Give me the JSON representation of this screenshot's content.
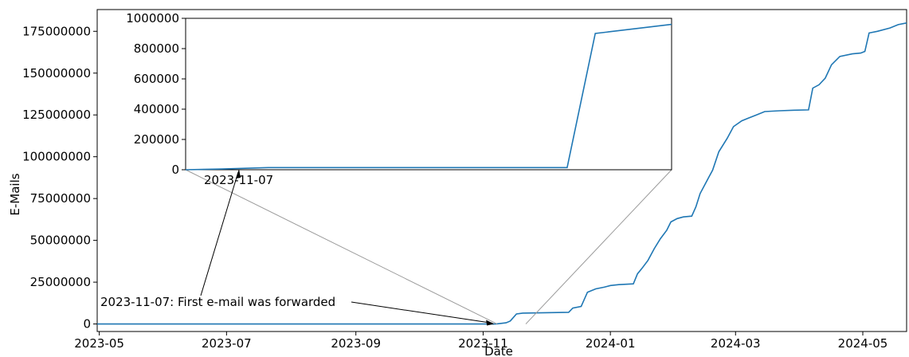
{
  "chart_data": [
    {
      "type": "line",
      "title": "",
      "xlabel": "Date",
      "ylabel": "E-Mails",
      "xlim": [
        "2023-04-30",
        "2024-05-22"
      ],
      "ylim": [
        -4500000,
        188000000
      ],
      "x_ticks": [
        "2023-05",
        "2023-07",
        "2023-09",
        "2023-11",
        "2024-01",
        "2024-03",
        "2024-05"
      ],
      "y_ticks": [
        0,
        25000000,
        50000000,
        75000000,
        100000000,
        125000000,
        150000000,
        175000000
      ],
      "y_tick_labels": [
        "0",
        "25000000",
        "50000000",
        "75000000",
        "100000000",
        "125000000",
        "150000000",
        "175000000"
      ],
      "grid": false,
      "line_color": "#1f77b4",
      "series": [
        {
          "x": [
            "2023-04-30",
            "2023-11-07",
            "2023-11-08",
            "2023-11-12",
            "2023-11-14",
            "2023-11-17",
            "2023-11-20",
            "2023-12-12",
            "2023-12-14",
            "2023-12-18",
            "2023-12-21",
            "2023-12-25",
            "2023-12-29",
            "2024-01-01",
            "2024-01-05",
            "2024-01-12",
            "2024-01-14",
            "2024-01-16",
            "2024-01-19",
            "2024-01-22",
            "2024-01-25",
            "2024-01-28",
            "2024-01-30",
            "2024-02-02",
            "2024-02-05",
            "2024-02-09",
            "2024-02-11",
            "2024-02-13",
            "2024-02-16",
            "2024-02-19",
            "2024-02-22",
            "2024-02-26",
            "2024-02-29",
            "2024-03-04",
            "2024-03-07",
            "2024-03-11",
            "2024-03-15",
            "2024-03-22",
            "2024-03-29",
            "2024-04-05",
            "2024-04-07",
            "2024-04-10",
            "2024-04-13",
            "2024-04-16",
            "2024-04-20",
            "2024-04-26",
            "2024-04-30",
            "2024-05-02",
            "2024-05-04",
            "2024-05-08",
            "2024-05-14",
            "2024-05-18",
            "2024-05-22"
          ],
          "y": [
            0,
            0,
            100000,
            700000,
            1800000,
            6000000,
            6500000,
            7000000,
            9500000,
            10500000,
            19000000,
            21000000,
            22000000,
            23000000,
            23500000,
            24000000,
            30000000,
            33000000,
            38000000,
            45000000,
            51000000,
            56000000,
            61000000,
            63000000,
            64000000,
            64500000,
            70000000,
            78000000,
            85000000,
            92000000,
            103000000,
            111000000,
            118000000,
            121500000,
            123000000,
            125000000,
            127000000,
            127500000,
            127800000,
            128000000,
            141000000,
            143000000,
            147000000,
            155000000,
            160000000,
            161500000,
            162000000,
            163000000,
            174000000,
            175000000,
            177000000,
            179000000,
            180000000
          ]
        }
      ],
      "annotations": [
        {
          "text": "2023-11-07: First e-mail was forwarded",
          "x": "2023-11-07",
          "y": 0
        }
      ]
    },
    {
      "type": "line",
      "title": "",
      "xlabel": "",
      "ylabel": "",
      "ylim": [
        0,
        1000000
      ],
      "y_ticks": [
        0,
        200000,
        400000,
        600000,
        800000,
        1000000
      ],
      "y_tick_labels": [
        "0",
        "200000",
        "400000",
        "600000",
        "800000",
        "1000000"
      ],
      "grid": false,
      "line_color": "#1f77b4",
      "series": [
        {
          "x_norm": [
            0,
            0.075,
            0.17,
            0.5,
            0.785,
            0.843,
            1
          ],
          "y": [
            0,
            5000,
            14000,
            14000,
            14000,
            900000,
            960000
          ]
        }
      ],
      "annotations": [
        {
          "text": "2023-11-07",
          "x_norm": 0.11,
          "y": 0
        }
      ]
    }
  ]
}
